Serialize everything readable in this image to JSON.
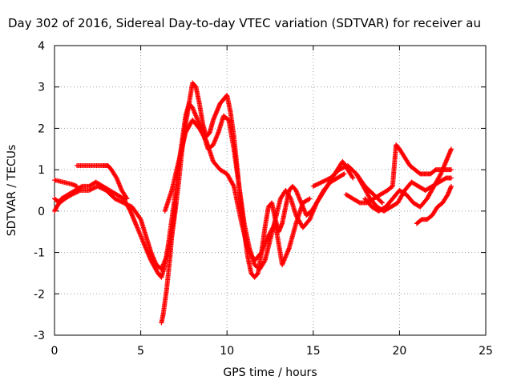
{
  "chart_data": {
    "type": "scatter",
    "title": "Day 302 of 2016, Sidereal Day-to-day VTEC variation (SDTVAR) for receiver au",
    "xlabel": "GPS time / hours",
    "ylabel": "SDTVAR / TECUs",
    "xlim": [
      0,
      25
    ],
    "ylim": [
      -3,
      4
    ],
    "xticks": [
      "0",
      "5",
      "10",
      "15",
      "20",
      "25"
    ],
    "yticks": [
      "-3",
      "-2",
      "-1",
      "0",
      "1",
      "2",
      "3",
      "4"
    ],
    "grid": true,
    "marker": "+",
    "color": "#ff0000",
    "series": [
      {
        "x": [
          0.0,
          0.3,
          0.6,
          1.0,
          1.5,
          2.0,
          2.5,
          3.0,
          3.5,
          4.0,
          4.5,
          5.0,
          5.3,
          5.6,
          5.9,
          6.2,
          6.5,
          6.8,
          7.0,
          7.2,
          7.4,
          7.6,
          7.8,
          8.0,
          8.2,
          8.4,
          8.6,
          8.8,
          9.0,
          9.2,
          9.4,
          9.6,
          9.8,
          10.0,
          10.2,
          10.4,
          10.6,
          10.8,
          11.0,
          11.2,
          11.4,
          11.6,
          11.8,
          12.0,
          12.2,
          12.4,
          12.6,
          12.8,
          13.0,
          13.2,
          13.4,
          13.6,
          13.8,
          14.0,
          14.3,
          14.6,
          14.9,
          15.2,
          15.5,
          15.8,
          16.1,
          16.4,
          16.7,
          17.0,
          17.3
        ],
        "y": [
          0.3,
          0.2,
          0.3,
          0.4,
          0.5,
          0.5,
          0.6,
          0.5,
          0.3,
          0.2,
          0.1,
          -0.2,
          -0.6,
          -1.0,
          -1.3,
          -1.4,
          -1.1,
          -0.6,
          0.0,
          0.7,
          1.5,
          2.1,
          2.6,
          3.1,
          3.0,
          2.6,
          2.1,
          1.8,
          1.9,
          2.2,
          2.4,
          2.6,
          2.7,
          2.8,
          2.4,
          1.8,
          1.0,
          0.2,
          -0.5,
          -1.1,
          -1.5,
          -1.6,
          -1.5,
          -1.0,
          -0.4,
          0.1,
          0.2,
          -0.2,
          -0.5,
          -0.3,
          0.1,
          0.5,
          0.6,
          0.5,
          0.2,
          -0.1,
          0.0,
          0.2,
          0.4,
          0.6,
          0.8,
          1.0,
          1.2,
          1.0,
          0.8
        ]
      },
      {
        "x": [
          0.0,
          0.4,
          0.8,
          1.2,
          1.6,
          2.0,
          2.4,
          2.8,
          3.2,
          3.6,
          4.0,
          4.4,
          4.8,
          5.2,
          5.6,
          6.0,
          6.2,
          6.4,
          6.6,
          6.8,
          7.0,
          7.2,
          7.4,
          7.6,
          7.8,
          8.0,
          8.3,
          8.6,
          8.9,
          9.2,
          9.5,
          9.8,
          10.1,
          10.4,
          10.7,
          11.0,
          11.3,
          11.6,
          11.9,
          12.2,
          12.5,
          12.8,
          13.1,
          13.4,
          13.7,
          14.0,
          14.4,
          14.8,
          15.2,
          15.6,
          16.0,
          16.4,
          16.8
        ],
        "y": [
          0.0,
          0.3,
          0.4,
          0.5,
          0.6,
          0.6,
          0.7,
          0.6,
          0.5,
          0.4,
          0.3,
          0.0,
          -0.4,
          -0.8,
          -1.2,
          -1.5,
          -1.6,
          -1.3,
          -0.8,
          -0.2,
          0.4,
          1.1,
          1.7,
          2.3,
          2.6,
          2.5,
          2.2,
          1.9,
          1.5,
          1.6,
          1.9,
          2.3,
          2.2,
          1.5,
          0.6,
          -0.3,
          -0.9,
          -1.3,
          -1.4,
          -1.2,
          -0.7,
          -0.2,
          0.3,
          0.5,
          0.3,
          -0.1,
          -0.4,
          -0.2,
          0.2,
          0.5,
          0.7,
          0.8,
          0.9
        ]
      },
      {
        "x": [
          0.0,
          0.5,
          1.0,
          1.3
        ],
        "y": [
          0.75,
          0.7,
          0.65,
          0.6
        ]
      },
      {
        "x": [
          1.3,
          1.8,
          2.3,
          2.8,
          3.1,
          3.3,
          3.6,
          3.9,
          4.2
        ],
        "y": [
          1.1,
          1.1,
          1.1,
          1.1,
          1.1,
          1.0,
          0.8,
          0.5,
          0.3
        ]
      },
      {
        "x": [
          6.2,
          6.3,
          6.4,
          6.5,
          6.6,
          6.7,
          6.8,
          7.0
        ],
        "y": [
          -2.7,
          -2.5,
          -2.2,
          -1.9,
          -1.5,
          -1.1,
          -0.6,
          0.2
        ]
      },
      {
        "x": [
          6.4,
          6.8,
          7.2,
          7.6,
          8.0,
          8.4,
          8.8,
          9.2,
          9.6,
          10.0,
          10.4,
          10.8,
          11.2,
          11.6,
          12.0,
          12.4,
          12.8,
          13.2,
          13.6,
          14.0,
          14.4,
          14.8
        ],
        "y": [
          0.0,
          0.5,
          1.2,
          1.9,
          2.2,
          2.0,
          1.7,
          1.2,
          1.0,
          0.9,
          0.6,
          -0.2,
          -0.9,
          -1.2,
          -1.0,
          -0.6,
          -0.3,
          -1.3,
          -0.9,
          -0.3,
          0.2,
          0.3
        ]
      },
      {
        "x": [
          16.9,
          17.3,
          17.7,
          18.1,
          18.5,
          18.9,
          19.3,
          19.6,
          19.8,
          20.0,
          20.3,
          20.6,
          20.9,
          21.2,
          21.5,
          21.8,
          22.1,
          22.4,
          22.7,
          23.0
        ],
        "y": [
          0.4,
          0.3,
          0.2,
          0.2,
          0.3,
          0.4,
          0.5,
          0.6,
          1.6,
          1.5,
          1.3,
          1.1,
          1.0,
          0.9,
          0.9,
          0.9,
          1.0,
          1.0,
          1.0,
          1.0
        ]
      },
      {
        "x": [
          17.5,
          17.9,
          18.3,
          18.7,
          19.1,
          19.5,
          19.9,
          20.3,
          20.7,
          21.1,
          21.5,
          21.9,
          22.3,
          22.7,
          23.0
        ],
        "y": [
          0.9,
          0.6,
          0.3,
          0.1,
          0.0,
          0.1,
          0.2,
          0.5,
          0.7,
          0.6,
          0.5,
          0.6,
          0.7,
          0.8,
          0.8
        ]
      },
      {
        "x": [
          18.0,
          18.4,
          18.8,
          19.2,
          19.6,
          20.0,
          20.4,
          20.8,
          21.2,
          21.6,
          22.0,
          22.4,
          22.8,
          23.0
        ],
        "y": [
          0.3,
          0.1,
          0.0,
          0.1,
          0.3,
          0.5,
          0.4,
          0.2,
          0.1,
          0.3,
          0.6,
          0.9,
          1.3,
          1.5
        ]
      },
      {
        "x": [
          21.0,
          21.3,
          21.6,
          21.9,
          22.2,
          22.5,
          22.8,
          23.0
        ],
        "y": [
          -0.3,
          -0.2,
          -0.2,
          -0.1,
          0.1,
          0.2,
          0.4,
          0.6
        ]
      },
      {
        "x": [
          15.0,
          15.5,
          16.0,
          16.5,
          17.0,
          17.5,
          18.0,
          18.5,
          19.0
        ],
        "y": [
          0.6,
          0.7,
          0.8,
          1.0,
          1.1,
          0.9,
          0.6,
          0.4,
          0.2
        ]
      }
    ]
  }
}
